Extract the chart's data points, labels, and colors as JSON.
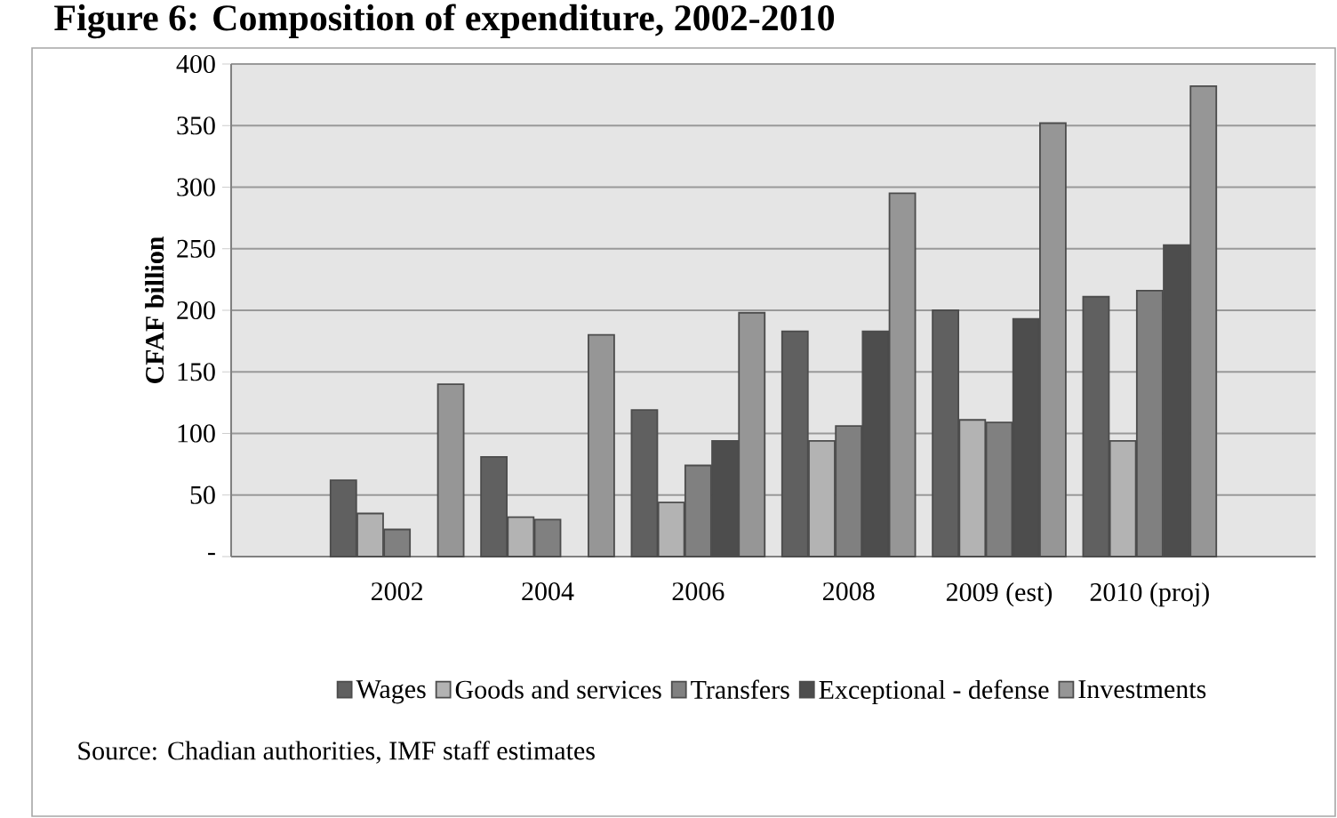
{
  "chart_data": {
    "type": "bar",
    "title": "Figure 6: Composition of expenditure, 2002-2010",
    "ylabel": "CFAF billion",
    "categories": [
      "2002",
      "2004",
      "2006",
      "2008",
      "2009 (est)",
      "2010 (proj)"
    ],
    "series": [
      {
        "name": "Wages",
        "color": "#606060",
        "values": [
          62,
          81,
          119,
          183,
          200,
          211
        ]
      },
      {
        "name": "Goods and services",
        "color": "#b3b3b3",
        "values": [
          35,
          32,
          44,
          94,
          111,
          94
        ]
      },
      {
        "name": "Transfers",
        "color": "#808080",
        "values": [
          22,
          30,
          74,
          106,
          109,
          216
        ]
      },
      {
        "name": "Exceptional - defense",
        "color": "#4d4d4d",
        "values": [
          null,
          null,
          94,
          183,
          193,
          253
        ]
      },
      {
        "name": "Investments",
        "color": "#969696",
        "values": [
          140,
          180,
          198,
          295,
          352,
          382
        ]
      }
    ],
    "ylim": [
      0,
      400
    ],
    "yticks": [
      {
        "value": 0,
        "label": "-"
      },
      50,
      100,
      150,
      200,
      250,
      300,
      350,
      400
    ],
    "grid": "y",
    "legend": "bottom",
    "annotations": [
      "Source: Chadian authorities, IMF staff estimates"
    ]
  }
}
